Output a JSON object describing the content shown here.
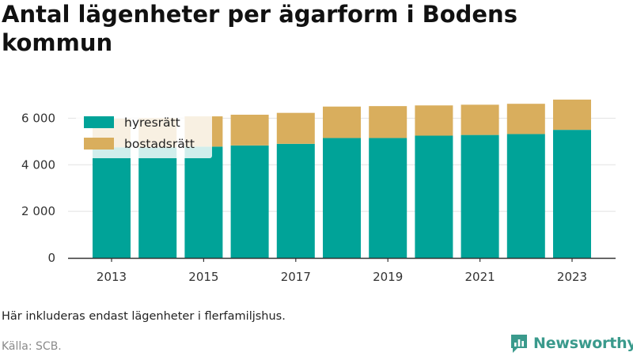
{
  "title": "Antal lägenheter per ägarform i Bodens kommun",
  "note": "Här inkluderas endast lägenheter i flerfamiljshus.",
  "source": "Källa: SCB.",
  "brand": {
    "name": "Newsworthy",
    "icon": "newsworthy-logo-icon",
    "color": "#3a9a8c"
  },
  "chart_data": {
    "type": "bar",
    "stacked": true,
    "categories": [
      2013,
      2014,
      2015,
      2016,
      2017,
      2018,
      2019,
      2020,
      2021,
      2022,
      2023
    ],
    "x_tick_labels": [
      "2013",
      "2015",
      "2017",
      "2019",
      "2021",
      "2023"
    ],
    "series": [
      {
        "name": "hyresrätt",
        "color": "#00a398",
        "values": [
          4750,
          4750,
          4780,
          4830,
          4900,
          5150,
          5150,
          5250,
          5280,
          5320,
          5500
        ]
      },
      {
        "name": "bostadsrätt",
        "color": "#d9ae5d",
        "values": [
          1230,
          1250,
          1300,
          1320,
          1330,
          1350,
          1370,
          1300,
          1300,
          1300,
          1300
        ]
      }
    ],
    "ylim": [
      0,
      7000
    ],
    "y_ticks": [
      0,
      2000,
      4000,
      6000
    ],
    "y_tick_labels": [
      "0",
      "2 000",
      "4 000",
      "6 000"
    ],
    "grid": "horizontal",
    "legend_position": "top-left"
  }
}
